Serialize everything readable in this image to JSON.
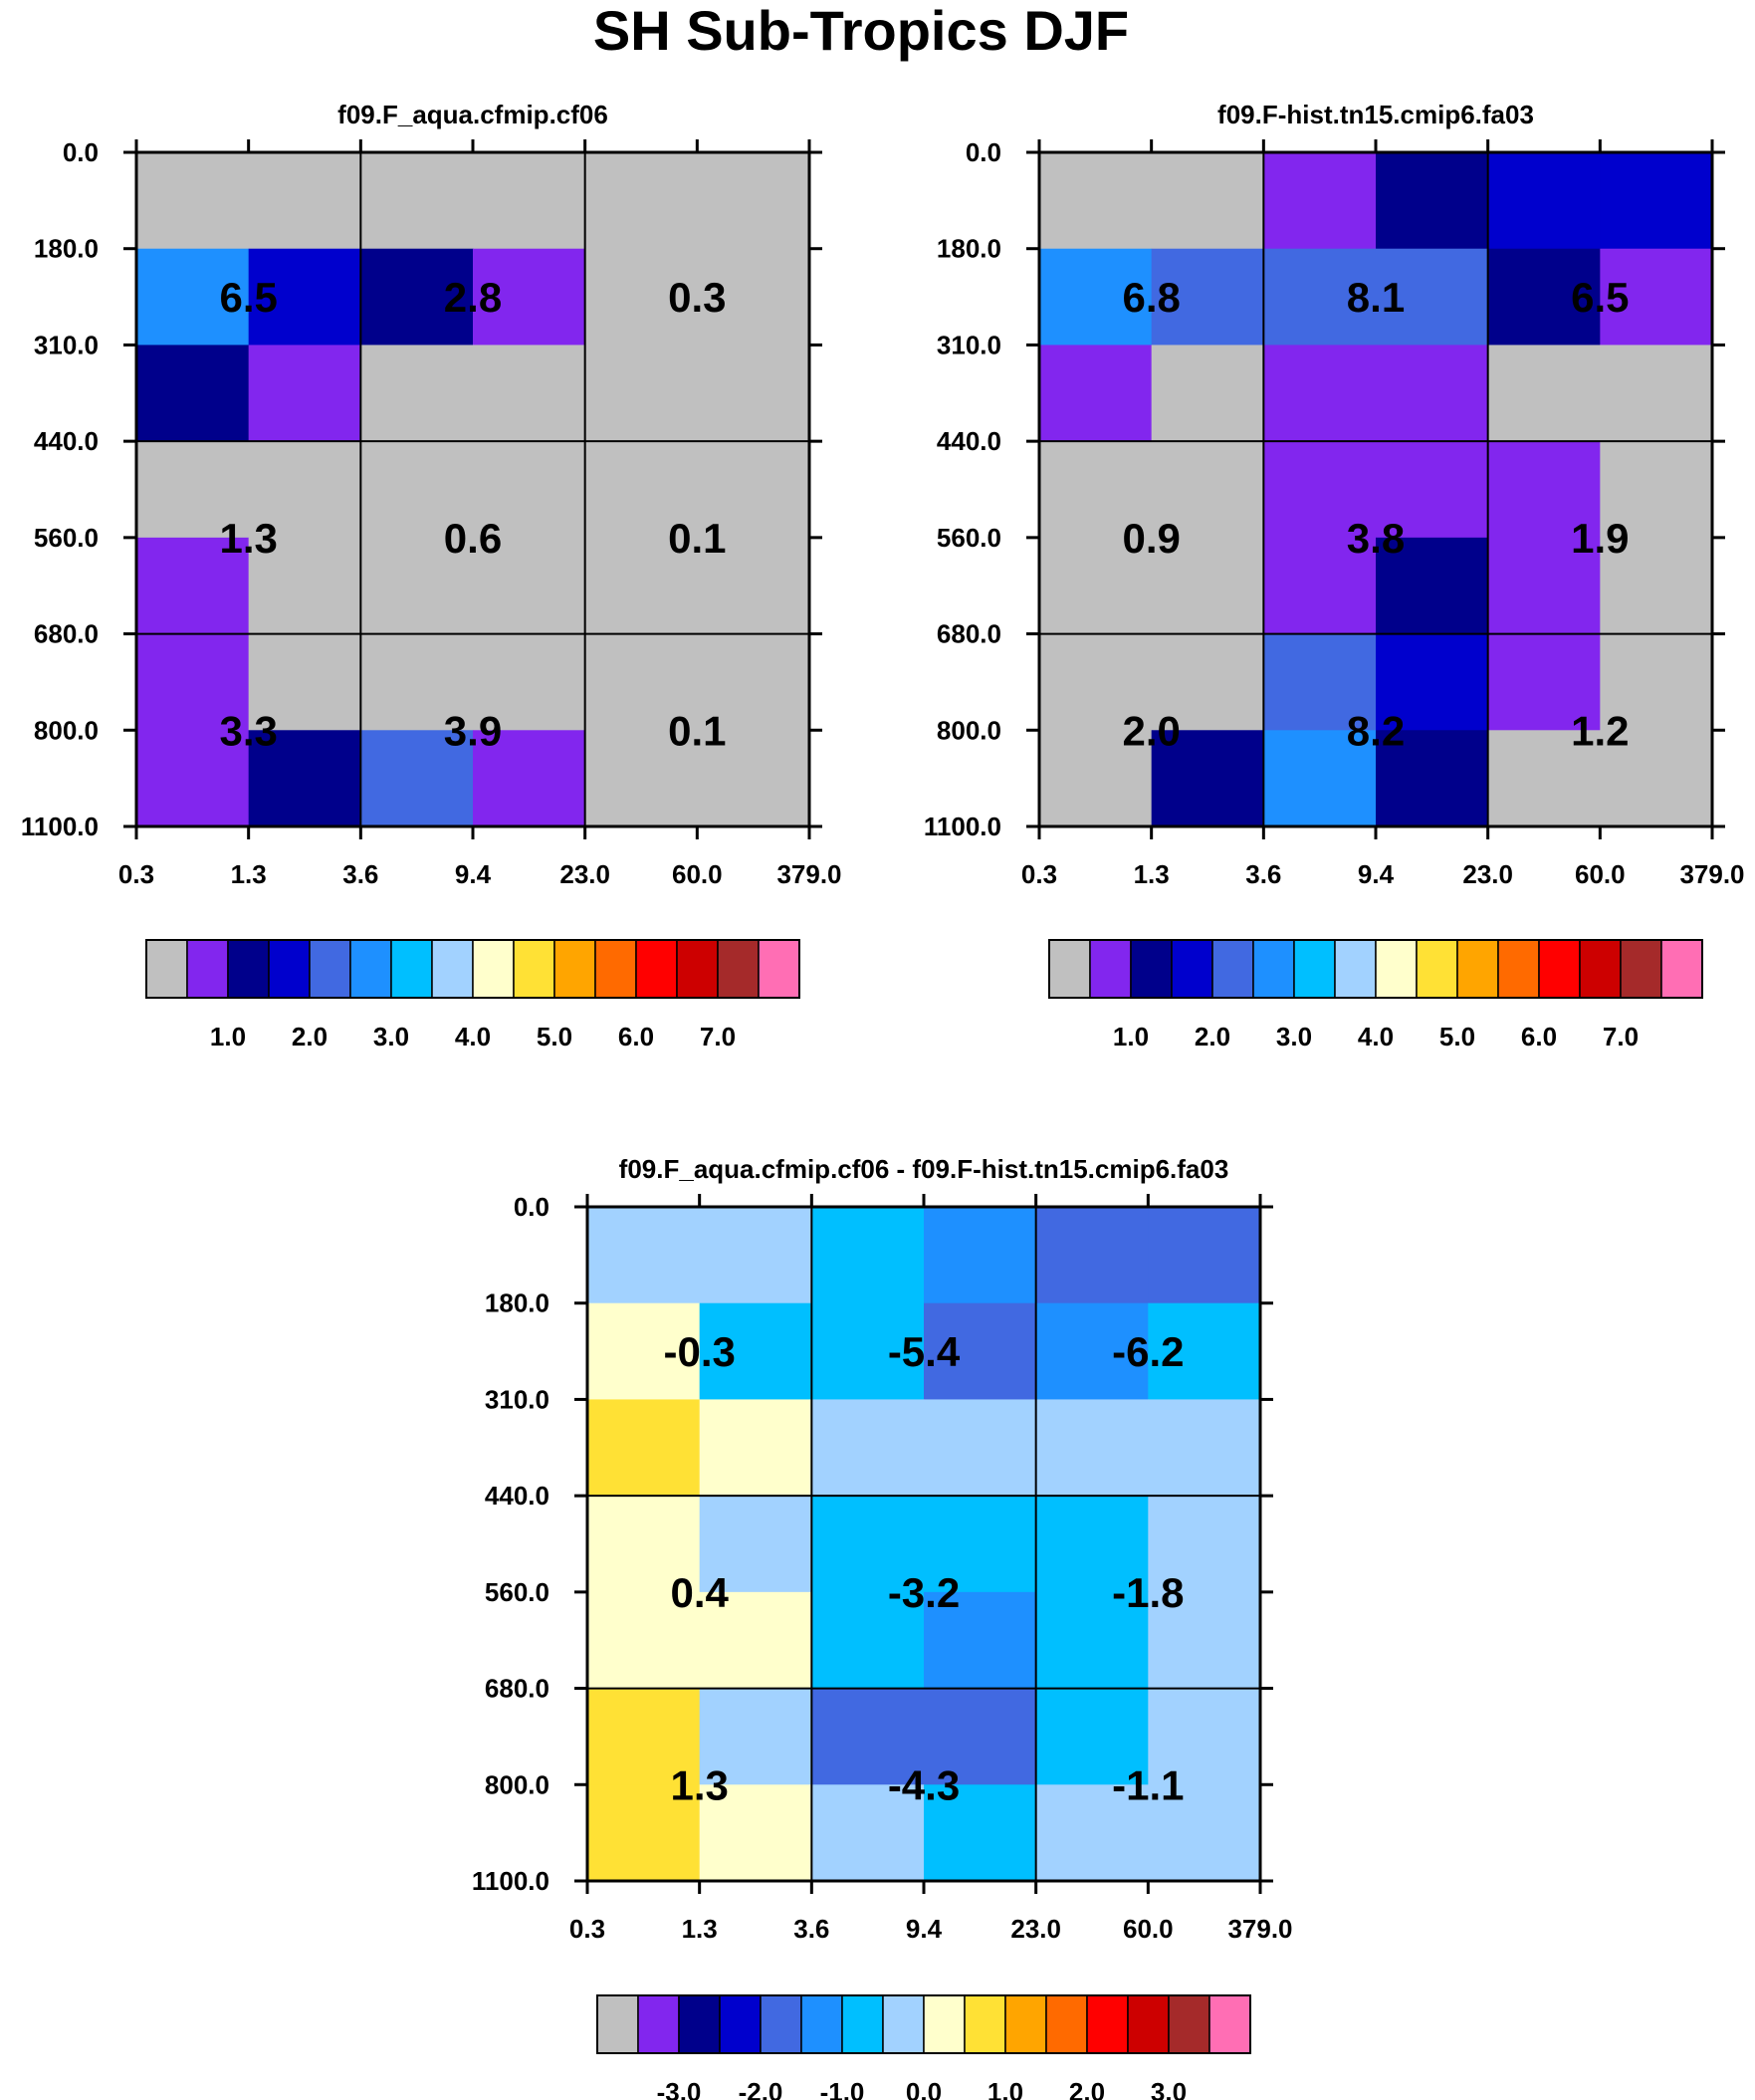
{
  "title": "SH Sub-Tropics DJF",
  "palette": [
    "#c0c0c0",
    "#8226ee",
    "#00008b",
    "#0000cd",
    "#4169e1",
    "#1e90ff",
    "#00bfff",
    "#a2d2ff",
    "#ffffcc",
    "#ffe135",
    "#ffa500",
    "#ff6a00",
    "#ff0000",
    "#cd0000",
    "#a52a2a",
    "#ff6eb4"
  ],
  "chart_data": [
    {
      "type": "heatmap",
      "title": "f09.F_aqua.cfmip.cf06",
      "x_ticks": [
        "0.3",
        "1.3",
        "3.6",
        "9.4",
        "23.0",
        "60.0",
        "379.0"
      ],
      "y_ticks": [
        "0.0",
        "180.0",
        "310.0",
        "440.0",
        "560.0",
        "680.0",
        "800.0",
        "1100.0"
      ],
      "cell_colors": [
        [
          0,
          0,
          0,
          0,
          0,
          0
        ],
        [
          5,
          3,
          2,
          1,
          0,
          0
        ],
        [
          2,
          1,
          0,
          0,
          0,
          0
        ],
        [
          0,
          0,
          0,
          0,
          0,
          0
        ],
        [
          1,
          0,
          0,
          0,
          0,
          0
        ],
        [
          1,
          0,
          0,
          0,
          0,
          0
        ],
        [
          1,
          2,
          4,
          1,
          0,
          0
        ]
      ],
      "box_values": [
        [
          "6.5",
          "2.8",
          "0.3"
        ],
        [
          "1.3",
          "0.6",
          "0.1"
        ],
        [
          "3.3",
          "3.9",
          "0.1"
        ]
      ],
      "colorbar": {
        "labels": [
          "1.0",
          "2.0",
          "3.0",
          "4.0",
          "5.0",
          "6.0",
          "7.0"
        ]
      }
    },
    {
      "type": "heatmap",
      "title": "f09.F-hist.tn15.cmip6.fa03",
      "x_ticks": [
        "0.3",
        "1.3",
        "3.6",
        "9.4",
        "23.0",
        "60.0",
        "379.0"
      ],
      "y_ticks": [
        "0.0",
        "180.0",
        "310.0",
        "440.0",
        "560.0",
        "680.0",
        "800.0",
        "1100.0"
      ],
      "cell_colors": [
        [
          0,
          0,
          1,
          2,
          3,
          3
        ],
        [
          5,
          4,
          4,
          4,
          2,
          1
        ],
        [
          1,
          0,
          1,
          1,
          0,
          0
        ],
        [
          0,
          0,
          1,
          1,
          1,
          0
        ],
        [
          0,
          0,
          1,
          2,
          1,
          0
        ],
        [
          0,
          0,
          4,
          3,
          1,
          0
        ],
        [
          0,
          2,
          5,
          2,
          0,
          0
        ]
      ],
      "box_values": [
        [
          "6.8",
          "8.1",
          "6.5"
        ],
        [
          "0.9",
          "3.8",
          "1.9"
        ],
        [
          "2.0",
          "8.2",
          "1.2"
        ]
      ],
      "colorbar": {
        "labels": [
          "1.0",
          "2.0",
          "3.0",
          "4.0",
          "5.0",
          "6.0",
          "7.0"
        ]
      }
    },
    {
      "type": "heatmap",
      "title": "f09.F_aqua.cfmip.cf06 - f09.F-hist.tn15.cmip6.fa03",
      "x_ticks": [
        "0.3",
        "1.3",
        "3.6",
        "9.4",
        "23.0",
        "60.0",
        "379.0"
      ],
      "y_ticks": [
        "0.0",
        "180.0",
        "310.0",
        "440.0",
        "560.0",
        "680.0",
        "800.0",
        "1100.0"
      ],
      "cell_colors": [
        [
          7,
          7,
          6,
          5,
          4,
          4
        ],
        [
          8,
          6,
          6,
          4,
          5,
          6
        ],
        [
          9,
          8,
          7,
          7,
          7,
          7
        ],
        [
          8,
          7,
          6,
          6,
          6,
          7
        ],
        [
          8,
          8,
          6,
          5,
          6,
          7
        ],
        [
          9,
          7,
          4,
          4,
          6,
          7
        ],
        [
          9,
          8,
          7,
          6,
          7,
          7
        ]
      ],
      "box_values": [
        [
          "-0.3",
          "-5.4",
          "-6.2"
        ],
        [
          "0.4",
          "-3.2",
          "-1.8"
        ],
        [
          "1.3",
          "-4.3",
          "-1.1"
        ]
      ],
      "colorbar": {
        "labels": [
          "-3.0",
          "-2.0",
          "-1.0",
          "0.0",
          "1.0",
          "2.0",
          "3.0"
        ]
      }
    }
  ]
}
